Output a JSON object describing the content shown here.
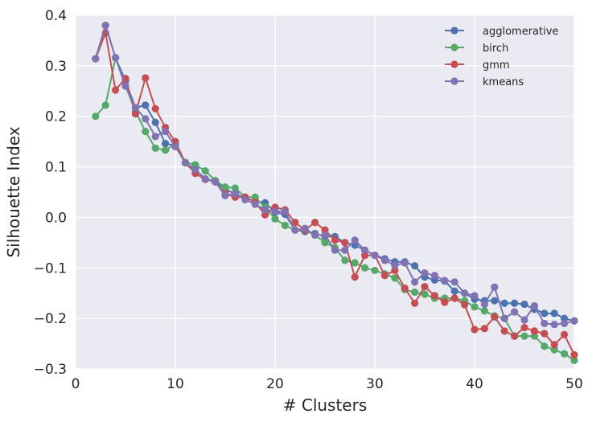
{
  "chart_data": {
    "type": "line",
    "xlabel": "# Clusters",
    "ylabel": "Silhouette Index",
    "xlim": [
      0,
      50
    ],
    "ylim": [
      -0.3,
      0.4
    ],
    "xticks": [
      0,
      10,
      20,
      30,
      40,
      50
    ],
    "yticks": [
      -0.3,
      -0.2,
      -0.1,
      0.0,
      0.1,
      0.2,
      0.3,
      0.4
    ],
    "xtick_labels": [
      "0",
      "10",
      "20",
      "30",
      "40",
      "50"
    ],
    "ytick_labels": [
      "−0.3",
      "−0.2",
      "−0.1",
      "0.0",
      "0.1",
      "0.2",
      "0.3",
      "0.4"
    ],
    "grid": true,
    "legend_position": "top-right",
    "x": [
      2,
      3,
      4,
      5,
      6,
      7,
      8,
      9,
      10,
      11,
      12,
      13,
      14,
      15,
      16,
      17,
      18,
      19,
      20,
      21,
      22,
      23,
      24,
      25,
      26,
      27,
      28,
      29,
      30,
      31,
      32,
      33,
      34,
      35,
      36,
      37,
      38,
      39,
      40,
      41,
      42,
      43,
      44,
      45,
      46,
      47,
      48,
      49,
      50
    ],
    "series": [
      {
        "name": "agglomerative",
        "color": "#4C72B0",
        "values": [
          0.314,
          0.38,
          0.316,
          0.27,
          0.217,
          0.222,
          0.188,
          0.146,
          0.142,
          0.108,
          0.095,
          0.076,
          0.072,
          0.055,
          0.047,
          0.038,
          0.032,
          0.029,
          0.01,
          0.006,
          -0.025,
          -0.028,
          -0.032,
          -0.038,
          -0.038,
          -0.05,
          -0.055,
          -0.065,
          -0.075,
          -0.082,
          -0.088,
          -0.088,
          -0.096,
          -0.118,
          -0.124,
          -0.126,
          -0.146,
          -0.15,
          -0.162,
          -0.165,
          -0.165,
          -0.17,
          -0.17,
          -0.172,
          -0.182,
          -0.19,
          -0.19,
          -0.2,
          -0.205
        ]
      },
      {
        "name": "birch",
        "color": "#55A868",
        "values": [
          0.2,
          0.222,
          0.316,
          0.26,
          0.21,
          0.17,
          0.137,
          0.133,
          0.145,
          0.109,
          0.104,
          0.092,
          0.073,
          0.06,
          0.058,
          0.04,
          0.04,
          0.02,
          -0.003,
          -0.016,
          -0.025,
          -0.025,
          -0.035,
          -0.05,
          -0.06,
          -0.085,
          -0.09,
          -0.1,
          -0.105,
          -0.112,
          -0.12,
          -0.143,
          -0.148,
          -0.152,
          -0.16,
          -0.16,
          -0.16,
          -0.165,
          -0.177,
          -0.185,
          -0.195,
          -0.2,
          -0.235,
          -0.235,
          -0.235,
          -0.255,
          -0.262,
          -0.27,
          -0.283
        ]
      },
      {
        "name": "gmm",
        "color": "#C44E52",
        "values": [
          0.314,
          0.365,
          0.252,
          0.275,
          0.205,
          0.276,
          0.215,
          0.178,
          0.15,
          0.108,
          0.087,
          0.075,
          0.07,
          0.047,
          0.04,
          0.04,
          0.03,
          0.005,
          0.02,
          0.015,
          -0.01,
          -0.025,
          -0.01,
          -0.025,
          -0.045,
          -0.05,
          -0.118,
          -0.075,
          -0.075,
          -0.115,
          -0.105,
          -0.14,
          -0.17,
          -0.137,
          -0.155,
          -0.168,
          -0.16,
          -0.173,
          -0.222,
          -0.22,
          -0.197,
          -0.225,
          -0.235,
          -0.218,
          -0.225,
          -0.23,
          -0.252,
          -0.232,
          -0.272
        ]
      },
      {
        "name": "kmeans",
        "color": "#8172B2",
        "values": [
          0.314,
          0.38,
          0.316,
          0.26,
          0.217,
          0.195,
          0.16,
          0.17,
          0.14,
          0.108,
          0.095,
          0.076,
          0.07,
          0.043,
          0.047,
          0.035,
          0.026,
          0.015,
          0.012,
          0.012,
          -0.025,
          -0.022,
          -0.035,
          -0.035,
          -0.065,
          -0.065,
          -0.045,
          -0.065,
          -0.075,
          -0.085,
          -0.095,
          -0.09,
          -0.128,
          -0.11,
          -0.115,
          -0.125,
          -0.128,
          -0.15,
          -0.155,
          -0.172,
          -0.138,
          -0.2,
          -0.187,
          -0.203,
          -0.175,
          -0.21,
          -0.212,
          -0.21,
          -0.205
        ]
      }
    ]
  }
}
